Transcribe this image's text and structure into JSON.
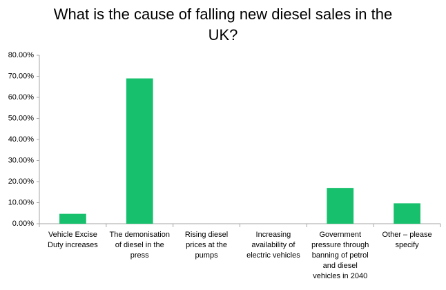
{
  "chart_data": {
    "type": "bar",
    "title": "What is the cause of falling new diesel sales in the UK?",
    "categories": [
      "Vehicle Excise Duty increases",
      "The demonisation of diesel in the press",
      "Rising diesel prices at the pumps",
      "Increasing availability of electric vehicles",
      "Government pressure through banning of petrol and diesel vehicles in 2040",
      "Other – please specify"
    ],
    "values": [
      4.7,
      69,
      0,
      0,
      17,
      9.7
    ],
    "color": "#17c06c",
    "ylim": [
      0,
      80
    ],
    "yticks": [
      {
        "value": 0,
        "label": "0.00%"
      },
      {
        "value": 10,
        "label": "10.00%"
      },
      {
        "value": 20,
        "label": "20.00%"
      },
      {
        "value": 30,
        "label": "30.00%"
      },
      {
        "value": 40,
        "label": "40.00%"
      },
      {
        "value": 50,
        "label": "50.00%"
      },
      {
        "value": 60,
        "label": "60.00%"
      },
      {
        "value": 70,
        "label": "70.00%"
      },
      {
        "value": 80,
        "label": "80.00%"
      }
    ],
    "grid": false
  }
}
